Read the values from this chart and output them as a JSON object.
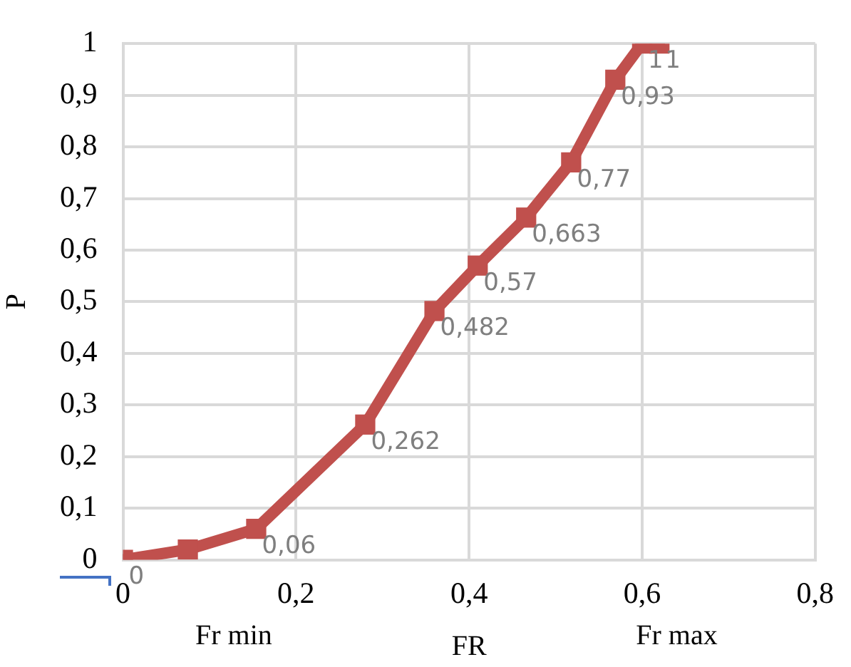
{
  "chart_data": {
    "type": "line",
    "xlabel": "FR",
    "ylabel": "P",
    "x": [
      0,
      0.075,
      0.154,
      0.28,
      0.36,
      0.41,
      0.466,
      0.518,
      0.569,
      0.6,
      0.62
    ],
    "series": [
      {
        "color": "#c0504d",
        "values": [
          0,
          0.02,
          0.06,
          0.262,
          0.482,
          0.57,
          0.663,
          0.77,
          0.93,
          1,
          1
        ],
        "value_labels": [
          "0",
          null,
          "0,06",
          "0,262",
          "0,482",
          "0,57",
          "0,663",
          "0,77",
          "0,93",
          "1",
          "1"
        ]
      }
    ],
    "xlim": [
      0,
      0.8
    ],
    "xticks": [
      {
        "value": 0,
        "label": "0"
      },
      {
        "value": 0.2,
        "label": "0,2"
      },
      {
        "value": 0.4,
        "label": "0,4"
      },
      {
        "value": 0.6,
        "label": "0,6"
      },
      {
        "value": 0.8,
        "label": "0,8"
      }
    ],
    "ylim": [
      0,
      1
    ],
    "yticks": [
      {
        "value": 0,
        "label": "0"
      },
      {
        "value": 0.1,
        "label": "0,1"
      },
      {
        "value": 0.2,
        "label": "0,2"
      },
      {
        "value": 0.3,
        "label": "0,3"
      },
      {
        "value": 0.4,
        "label": "0,4"
      },
      {
        "value": 0.5,
        "label": "0,5"
      },
      {
        "value": 0.6,
        "label": "0,6"
      },
      {
        "value": 0.7,
        "label": "0,7"
      },
      {
        "value": 0.8,
        "label": "0,8"
      },
      {
        "value": 0.9,
        "label": "0,9"
      },
      {
        "value": 1,
        "label": "1"
      }
    ],
    "annotations": [
      "Fr min",
      "Fr max"
    ],
    "grid": true,
    "legend": false,
    "marker": "square",
    "line_style": "solid"
  }
}
